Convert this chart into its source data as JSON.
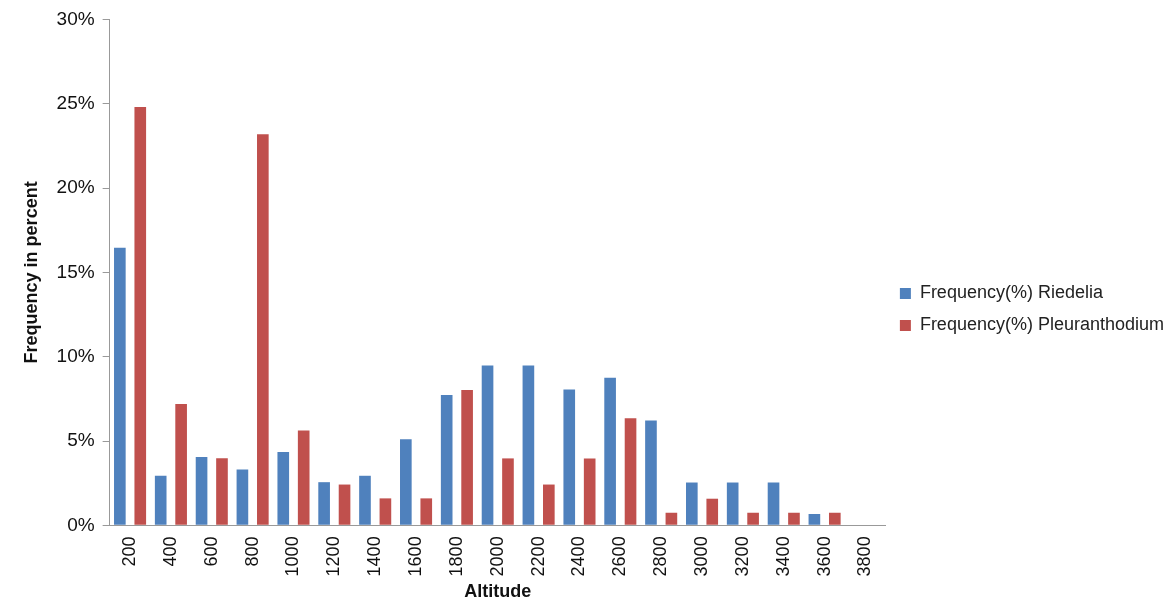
{
  "chart_data": {
    "type": "bar",
    "xlabel": "Altitude",
    "ylabel": "Frequency in percent",
    "categories": [
      "200",
      "400",
      "600",
      "800",
      "1000",
      "1200",
      "1400",
      "1600",
      "1800",
      "2000",
      "2200",
      "2400",
      "2600",
      "2800",
      "3000",
      "3200",
      "3400",
      "3600",
      "3800"
    ],
    "series": [
      {
        "name": "Frequency(%) Riedelia",
        "color": "#4f81bd",
        "values": [
          16.46,
          2.94,
          4.06,
          3.31,
          4.35,
          2.56,
          2.94,
          5.1,
          7.73,
          9.48,
          9.48,
          8.06,
          8.75,
          6.21,
          2.54,
          2.54,
          2.54,
          0.67,
          0
        ]
      },
      {
        "name": "Frequency(%) Pleuranthodium",
        "color": "#c0504d",
        "values": [
          24.8,
          7.19,
          3.98,
          23.19,
          5.63,
          2.42,
          1.6,
          1.6,
          8.02,
          3.97,
          2.42,
          3.96,
          6.35,
          0.75,
          1.58,
          0.75,
          0.75,
          0.75,
          0
        ]
      }
    ],
    "ylim": [
      0,
      30
    ],
    "yticks": [
      {
        "value": 0,
        "label": "0%"
      },
      {
        "value": 5,
        "label": "5%"
      },
      {
        "value": 10,
        "label": "10%"
      },
      {
        "value": 15,
        "label": "15%"
      },
      {
        "value": 20,
        "label": "20%"
      },
      {
        "value": 25,
        "label": "25%"
      },
      {
        "value": 30,
        "label": "30%"
      }
    ],
    "grid": false,
    "legend": "right"
  }
}
